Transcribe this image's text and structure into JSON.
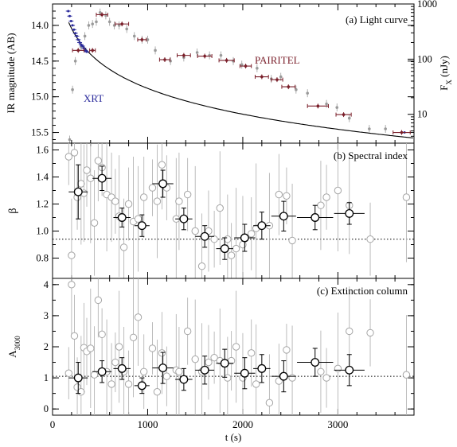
{
  "colors": {
    "axis": "#000000",
    "pairitel": "#7a1f2a",
    "xrt": "#2b2b9c",
    "gray": "#9a9a9a",
    "black": "#000000"
  },
  "x_axis": {
    "label": "t (s)",
    "ticks": [
      0,
      1000,
      2000,
      3000
    ],
    "range": [
      0,
      3800
    ]
  },
  "chart_data": [
    {
      "type": "scatter",
      "panel_label": "(a) Light curve",
      "ylabel": "IR magnitude (AB)",
      "ylabel_right": "F_X (nJy)",
      "ylim": [
        15.65,
        13.7
      ],
      "y_ticks": [
        14.0,
        14.5,
        15.0,
        15.5
      ],
      "y_right_ticks": [
        1000,
        100,
        10
      ],
      "y_right_log_range": [
        3.0,
        1000
      ],
      "series": [
        {
          "name": "PAIRITEL",
          "color": "pairitel",
          "points": [
            [
              270,
              14.35,
              60
            ],
            [
              420,
              14.35,
              30
            ],
            [
              520,
              13.85,
              60
            ],
            [
              730,
              13.98,
              70
            ],
            [
              940,
              14.2,
              45
            ],
            [
              1180,
              14.48,
              55
            ],
            [
              1380,
              14.42,
              70
            ],
            [
              1600,
              14.43,
              75
            ],
            [
              1830,
              14.49,
              80
            ],
            [
              2030,
              14.57,
              60
            ],
            [
              2200,
              14.72,
              70
            ],
            [
              2360,
              14.76,
              60
            ],
            [
              2480,
              14.86,
              70
            ],
            [
              2790,
              15.13,
              110
            ],
            [
              3060,
              15.25,
              80
            ],
            [
              3670,
              15.5,
              90
            ]
          ]
        },
        {
          "name": "",
          "color": "gray",
          "points": [
            [
              180,
              15.6
            ],
            [
              210,
              14.9
            ],
            [
              240,
              14.5
            ],
            [
              300,
              14.3
            ],
            [
              340,
              14.15
            ],
            [
              380,
              14.0
            ],
            [
              420,
              13.98
            ],
            [
              460,
              13.95
            ],
            [
              500,
              13.82
            ],
            [
              560,
              13.86
            ],
            [
              600,
              13.95
            ],
            [
              650,
              14.0
            ],
            [
              700,
              14.0
            ],
            [
              780,
              14.05
            ],
            [
              860,
              14.15
            ],
            [
              940,
              14.2
            ],
            [
              1000,
              14.2
            ],
            [
              1080,
              14.35
            ],
            [
              1240,
              14.5
            ],
            [
              1380,
              14.45
            ],
            [
              1520,
              14.38
            ],
            [
              1650,
              14.42
            ],
            [
              1770,
              14.42
            ],
            [
              1900,
              14.5
            ],
            [
              1990,
              14.55
            ],
            [
              2150,
              14.6
            ],
            [
              2300,
              14.75
            ],
            [
              2400,
              14.72
            ],
            [
              2560,
              14.9
            ],
            [
              2680,
              14.95
            ],
            [
              2880,
              15.1
            ],
            [
              2990,
              15.15
            ],
            [
              3120,
              15.3
            ],
            [
              3330,
              15.45
            ],
            [
              3500,
              15.45
            ]
          ]
        },
        {
          "name": "XRT",
          "color": "xrt",
          "points": [
            [
              165,
              13.8
            ],
            [
              180,
              13.87
            ],
            [
              195,
              13.94
            ],
            [
              210,
              14.0
            ],
            [
              225,
              14.06
            ],
            [
              240,
              14.11
            ],
            [
              255,
              14.15
            ],
            [
              270,
              14.2
            ],
            [
              285,
              14.24
            ],
            [
              300,
              14.27
            ],
            [
              315,
              14.29
            ],
            [
              330,
              14.32
            ],
            [
              345,
              14.35
            ],
            [
              360,
              14.37
            ],
            [
              3700,
              15.5
            ]
          ]
        }
      ],
      "annotations": [
        "PAIRITEL",
        "XRT"
      ]
    },
    {
      "type": "scatter",
      "panel_label": "(b) Spectral index",
      "ylabel": "β",
      "ylim": [
        0.65,
        1.65
      ],
      "y_ticks": [
        0.8,
        1.0,
        1.2,
        1.4,
        1.6
      ],
      "reference_line": 0.94,
      "binned": [
        [
          270,
          1.29,
          100,
          0.2
        ],
        [
          520,
          1.39,
          100,
          0.09
        ],
        [
          730,
          1.1,
          90,
          0.07
        ],
        [
          940,
          1.04,
          80,
          0.08
        ],
        [
          1160,
          1.35,
          110,
          0.1
        ],
        [
          1380,
          1.09,
          90,
          0.08
        ],
        [
          1600,
          0.96,
          100,
          0.08
        ],
        [
          1810,
          0.87,
          90,
          0.08
        ],
        [
          2020,
          0.95,
          110,
          0.1
        ],
        [
          2200,
          1.04,
          90,
          0.1
        ],
        [
          2430,
          1.11,
          130,
          0.11
        ],
        [
          2760,
          1.1,
          190,
          0.09
        ],
        [
          3120,
          1.13,
          160,
          0.08
        ]
      ],
      "unbinned": [
        [
          170,
          1.55
        ],
        [
          200,
          0.82
        ],
        [
          230,
          1.58
        ],
        [
          260,
          1.25
        ],
        [
          300,
          1.35
        ],
        [
          330,
          1.28
        ],
        [
          360,
          1.45
        ],
        [
          400,
          1.39
        ],
        [
          440,
          1.06
        ],
        [
          480,
          1.52
        ],
        [
          520,
          1.47
        ],
        [
          570,
          1.27
        ],
        [
          620,
          1.25
        ],
        [
          660,
          1.22
        ],
        [
          700,
          1.11
        ],
        [
          750,
          0.88
        ],
        [
          800,
          1.2
        ],
        [
          850,
          1.07
        ],
        [
          900,
          1.09
        ],
        [
          960,
          1.25
        ],
        [
          1050,
          1.32
        ],
        [
          1100,
          1.22
        ],
        [
          1150,
          1.49
        ],
        [
          1200,
          1.32
        ],
        [
          1300,
          1.09
        ],
        [
          1330,
          1.22
        ],
        [
          1420,
          1.27
        ],
        [
          1500,
          1.0
        ],
        [
          1570,
          0.74
        ],
        [
          1640,
          1.0
        ],
        [
          1700,
          0.94
        ],
        [
          1760,
          1.17
        ],
        [
          1840,
          0.94
        ],
        [
          1880,
          0.82
        ],
        [
          1930,
          0.87
        ],
        [
          2000,
          0.9
        ],
        [
          2090,
          0.98
        ],
        [
          2140,
          1.02
        ],
        [
          2280,
          1.04
        ],
        [
          2380,
          1.27
        ],
        [
          2460,
          1.26
        ],
        [
          2520,
          0.93
        ],
        [
          2820,
          1.19
        ],
        [
          2880,
          1.25
        ],
        [
          3000,
          1.3
        ],
        [
          3120,
          1.19
        ],
        [
          3340,
          0.94
        ],
        [
          3720,
          1.25
        ]
      ]
    },
    {
      "type": "scatter",
      "panel_label": "(c) Extinction column",
      "ylabel": "A3000",
      "ylim": [
        -0.2,
        4.2
      ],
      "y_ticks": [
        0,
        1,
        2,
        3,
        4
      ],
      "reference_line": 1.05,
      "binned": [
        [
          270,
          1.0,
          100,
          0.5
        ],
        [
          520,
          1.2,
          100,
          0.35
        ],
        [
          730,
          1.3,
          90,
          0.35
        ],
        [
          940,
          0.75,
          80,
          0.25
        ],
        [
          1160,
          1.32,
          110,
          0.5
        ],
        [
          1380,
          0.95,
          90,
          0.35
        ],
        [
          1600,
          1.25,
          100,
          0.45
        ],
        [
          1810,
          1.47,
          90,
          0.45
        ],
        [
          2020,
          1.15,
          110,
          0.5
        ],
        [
          2200,
          1.3,
          90,
          0.45
        ],
        [
          2430,
          1.05,
          130,
          0.5
        ],
        [
          2760,
          1.5,
          190,
          0.45
        ],
        [
          3120,
          1.25,
          160,
          0.5
        ]
      ],
      "unbinned": [
        [
          170,
          1.15
        ],
        [
          200,
          4.0
        ],
        [
          230,
          2.35
        ],
        [
          260,
          0.7
        ],
        [
          300,
          0.55
        ],
        [
          330,
          1.97
        ],
        [
          360,
          1.85
        ],
        [
          400,
          1.95
        ],
        [
          440,
          1.1
        ],
        [
          480,
          3.5
        ],
        [
          520,
          2.4
        ],
        [
          570,
          1.2
        ],
        [
          620,
          0.8
        ],
        [
          660,
          1.5
        ],
        [
          700,
          2.0
        ],
        [
          750,
          1.2
        ],
        [
          800,
          0.8
        ],
        [
          850,
          2.3
        ],
        [
          900,
          2.95
        ],
        [
          960,
          1.2
        ],
        [
          1050,
          1.95
        ],
        [
          1100,
          0.55
        ],
        [
          1150,
          1.8
        ],
        [
          1200,
          1.05
        ],
        [
          1300,
          1.25
        ],
        [
          1330,
          1.2
        ],
        [
          1420,
          2.5
        ],
        [
          1500,
          1.6
        ],
        [
          1570,
          1.2
        ],
        [
          1640,
          1.5
        ],
        [
          1700,
          1.65
        ],
        [
          1760,
          1.55
        ],
        [
          1840,
          1.0
        ],
        [
          1880,
          1.55
        ],
        [
          1930,
          2.0
        ],
        [
          2000,
          1.0
        ],
        [
          2090,
          1.8
        ],
        [
          2140,
          0.8
        ],
        [
          2280,
          0.2
        ],
        [
          2380,
          0.9
        ],
        [
          2460,
          1.9
        ],
        [
          2520,
          1.0
        ],
        [
          2820,
          1.2
        ],
        [
          2880,
          1.0
        ],
        [
          3000,
          1.3
        ],
        [
          3120,
          2.5
        ],
        [
          3340,
          2.45
        ],
        [
          3720,
          1.1
        ]
      ]
    }
  ]
}
